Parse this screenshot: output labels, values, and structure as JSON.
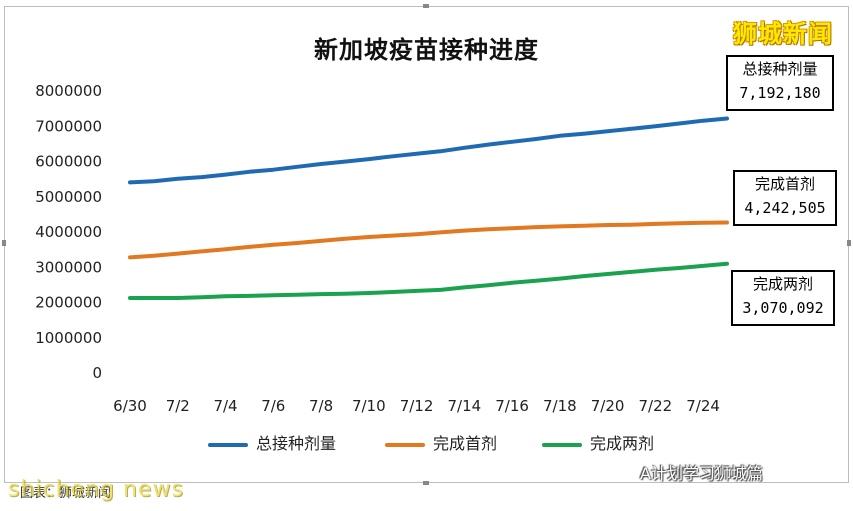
{
  "chart_data": {
    "type": "line",
    "title": "新加坡疫苗接种进度",
    "categories": [
      "6/30",
      "7/1",
      "7/2",
      "7/3",
      "7/4",
      "7/5",
      "7/6",
      "7/7",
      "7/8",
      "7/9",
      "7/10",
      "7/11",
      "7/12",
      "7/13",
      "7/14",
      "7/15",
      "7/16",
      "7/17",
      "7/18",
      "7/19",
      "7/20",
      "7/21",
      "7/22",
      "7/23",
      "7/24",
      "7/25"
    ],
    "x_tick_labels": [
      "6/30",
      "7/2",
      "7/4",
      "7/6",
      "7/8",
      "7/10",
      "7/12",
      "7/14",
      "7/16",
      "7/18",
      "7/20",
      "7/22",
      "7/24"
    ],
    "y_tick_labels": [
      "8000000",
      "7000000",
      "6000000",
      "5000000",
      "4000000",
      "3000000",
      "2000000",
      "1000000",
      "0"
    ],
    "ylim": [
      0,
      8000000
    ],
    "grid": false,
    "legend_position": "bottom",
    "series": [
      {
        "name": "总接种剂量",
        "color": "#1f6bb3",
        "values": [
          5380000,
          5410000,
          5480000,
          5530000,
          5600000,
          5680000,
          5740000,
          5820000,
          5900000,
          5970000,
          6040000,
          6120000,
          6190000,
          6260000,
          6360000,
          6450000,
          6530000,
          6610000,
          6700000,
          6760000,
          6830000,
          6900000,
          6970000,
          7050000,
          7130000,
          7192180
        ]
      },
      {
        "name": "完成首剂",
        "color": "#e2781f",
        "values": [
          3250000,
          3300000,
          3360000,
          3420000,
          3480000,
          3550000,
          3610000,
          3660000,
          3720000,
          3780000,
          3830000,
          3870000,
          3910000,
          3960000,
          4010000,
          4050000,
          4080000,
          4110000,
          4130000,
          4150000,
          4170000,
          4180000,
          4200000,
          4220000,
          4235000,
          4242505
        ]
      },
      {
        "name": "完成两剂",
        "color": "#1aa24e",
        "values": [
          2100000,
          2100000,
          2100000,
          2120000,
          2150000,
          2160000,
          2180000,
          2190000,
          2210000,
          2220000,
          2240000,
          2270000,
          2300000,
          2330000,
          2400000,
          2460000,
          2530000,
          2590000,
          2650000,
          2720000,
          2780000,
          2840000,
          2900000,
          2950000,
          3010000,
          3070092
        ]
      }
    ],
    "annotations": [
      {
        "series": "总接种剂量",
        "label": "总接种剂量",
        "value": "7,192,180",
        "color": "#3a78c2"
      },
      {
        "series": "完成首剂",
        "label": "完成首剂",
        "value": "4,242,505",
        "color": "#e2781f"
      },
      {
        "series": "完成两剂",
        "label": "完成两剂",
        "value": "3,070,092",
        "color": "#1aa24e"
      }
    ]
  },
  "brand": "狮城新闻",
  "source_note": "图表：狮城新闻",
  "watermarks": [
    "shicheng news",
    "A计划学习狮城篇"
  ]
}
